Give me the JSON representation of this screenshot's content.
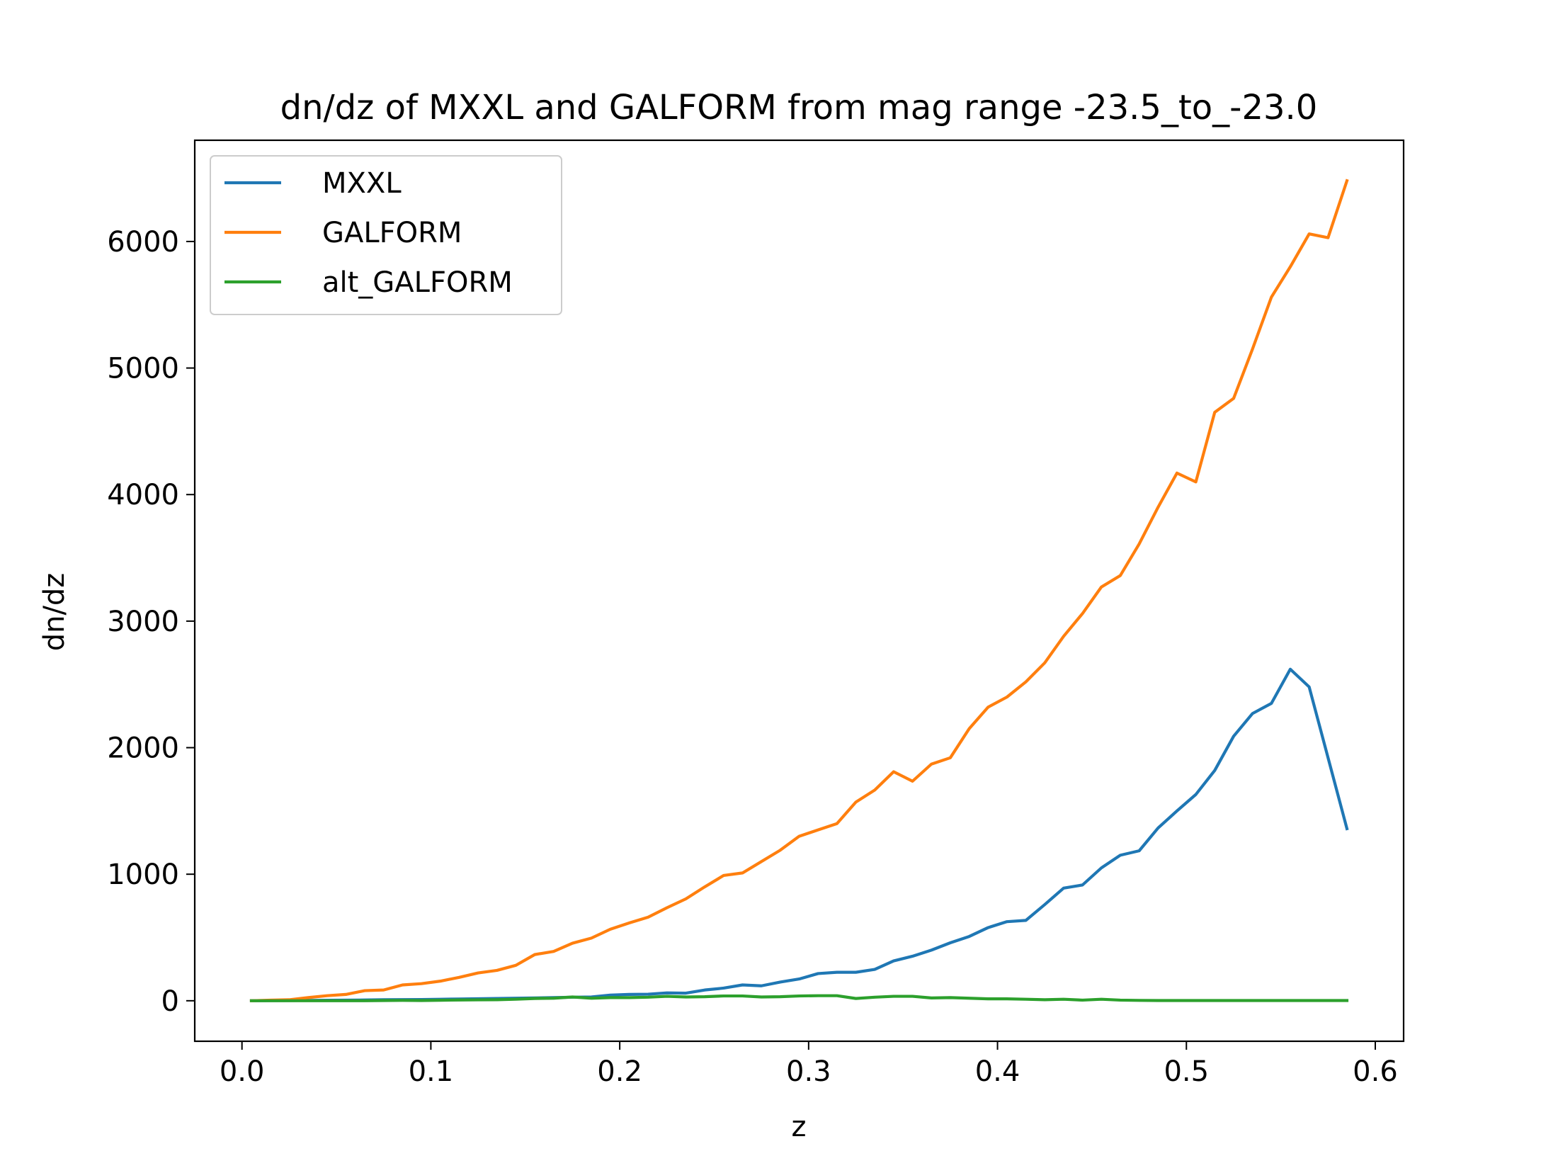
{
  "chart_data": {
    "type": "line",
    "title": "dn/dz of MXXL and GALFORM from mag range -23.5_to_-23.0",
    "xlabel": "z",
    "ylabel": "dn/dz",
    "xlim": [
      -0.025,
      0.615
    ],
    "ylim": [
      -320,
      6800
    ],
    "xticks": [
      0.0,
      0.1,
      0.2,
      0.3,
      0.4,
      0.5,
      0.6
    ],
    "xtick_labels": [
      "0.0",
      "0.1",
      "0.2",
      "0.3",
      "0.4",
      "0.5",
      "0.6"
    ],
    "yticks": [
      0,
      1000,
      2000,
      3000,
      4000,
      5000,
      6000
    ],
    "ytick_labels": [
      "0",
      "1000",
      "2000",
      "3000",
      "4000",
      "5000",
      "6000"
    ],
    "grid": false,
    "legend_position": "top-left",
    "x": [
      0.005,
      0.015,
      0.025,
      0.035,
      0.045,
      0.055,
      0.065,
      0.075,
      0.085,
      0.095,
      0.105,
      0.115,
      0.125,
      0.135,
      0.145,
      0.155,
      0.165,
      0.175,
      0.185,
      0.195,
      0.205,
      0.215,
      0.225,
      0.235,
      0.245,
      0.255,
      0.265,
      0.275,
      0.285,
      0.295,
      0.305,
      0.315,
      0.325,
      0.335,
      0.345,
      0.355,
      0.365,
      0.375,
      0.385,
      0.395,
      0.405,
      0.415,
      0.425,
      0.435,
      0.445,
      0.455,
      0.465,
      0.475,
      0.485,
      0.495,
      0.505,
      0.515,
      0.525,
      0.535,
      0.545,
      0.555,
      0.565,
      0.575,
      0.585
    ],
    "series": [
      {
        "name": "MXXL",
        "color": "#1f77b4",
        "values": [
          0,
          1,
          2,
          3,
          4,
          5,
          6,
          8,
          9,
          10,
          12,
          14,
          16,
          18,
          20,
          22,
          25,
          28,
          30,
          45,
          50,
          52,
          62,
          60,
          85,
          100,
          125,
          118,
          148,
          172,
          215,
          225,
          225,
          248,
          315,
          352,
          400,
          458,
          508,
          578,
          625,
          635,
          760,
          890,
          915,
          1050,
          1150,
          1185,
          1365,
          1500,
          1630,
          1820,
          2090,
          2270,
          2350,
          2620,
          2480,
          1920,
          1360
        ]
      },
      {
        "name": "GALFORM",
        "color": "#ff7f0e",
        "values": [
          0,
          5,
          8,
          25,
          40,
          50,
          80,
          85,
          125,
          135,
          155,
          185,
          220,
          240,
          280,
          365,
          390,
          455,
          495,
          565,
          615,
          660,
          735,
          805,
          900,
          990,
          1010,
          1100,
          1190,
          1300,
          1350,
          1400,
          1570,
          1665,
          1810,
          1735,
          1870,
          1920,
          2150,
          2320,
          2400,
          2520,
          2670,
          2880,
          3060,
          3270,
          3360,
          3610,
          3900,
          4170,
          4100,
          4650,
          4760,
          5150,
          5560,
          5800,
          6060,
          6030,
          6480
        ]
      },
      {
        "name": "alt_GALFORM",
        "color": "#2ca02c",
        "values": [
          0,
          0,
          0,
          0,
          0,
          0,
          0,
          2,
          3,
          2,
          4,
          6,
          7,
          8,
          12,
          18,
          20,
          30,
          20,
          25,
          25,
          28,
          35,
          30,
          32,
          38,
          38,
          30,
          32,
          38,
          40,
          40,
          18,
          28,
          35,
          35,
          22,
          25,
          20,
          15,
          15,
          12,
          8,
          12,
          5,
          12,
          5,
          3,
          2,
          2,
          2,
          2,
          2,
          2,
          2,
          2,
          2,
          2,
          2
        ]
      }
    ]
  }
}
